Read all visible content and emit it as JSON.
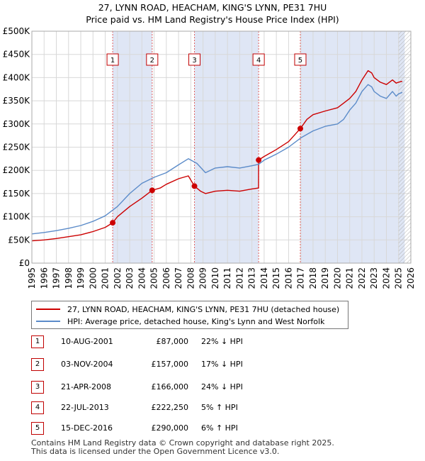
{
  "title": {
    "line1": "27, LYNN ROAD, HEACHAM, KING'S LYNN, PE31 7HU",
    "line2": "Price paid vs. HM Land Registry's House Price Index (HPI)"
  },
  "colors": {
    "property": "#cc0000",
    "hpi": "#5b8bc9",
    "shade": "#dfe6f5",
    "marker_line": "#e06060"
  },
  "chart_data": {
    "type": "line",
    "xlim": [
      1995,
      2026
    ],
    "ylim": [
      0,
      500000
    ],
    "x_ticks": [
      1995,
      1996,
      1997,
      1998,
      1999,
      2000,
      2001,
      2002,
      2003,
      2004,
      2005,
      2006,
      2007,
      2008,
      2009,
      2010,
      2011,
      2012,
      2013,
      2014,
      2015,
      2016,
      2017,
      2018,
      2019,
      2020,
      2021,
      2022,
      2023,
      2024,
      2025,
      2026
    ],
    "y_ticks": [
      {
        "value": 0,
        "label": "£0"
      },
      {
        "value": 50000,
        "label": "£50K"
      },
      {
        "value": 100000,
        "label": "£100K"
      },
      {
        "value": 150000,
        "label": "£150K"
      },
      {
        "value": 200000,
        "label": "£200K"
      },
      {
        "value": 250000,
        "label": "£250K"
      },
      {
        "value": 300000,
        "label": "£300K"
      },
      {
        "value": 350000,
        "label": "£350K"
      },
      {
        "value": 400000,
        "label": "£400K"
      },
      {
        "value": 450000,
        "label": "£450K"
      },
      {
        "value": 500000,
        "label": "£500K"
      }
    ],
    "shaded_periods": [
      [
        2001.61,
        2004.84
      ],
      [
        2008.3,
        2013.55
      ],
      [
        2016.96,
        2025.5
      ]
    ],
    "forecast_start": 2025.0,
    "series": [
      {
        "name": "27, LYNN ROAD, HEACHAM, KING'S LYNN, PE31 7HU (detached house)",
        "color_key": "property",
        "x": [
          1995.0,
          1996.0,
          1997.0,
          1998.0,
          1999.0,
          2000.0,
          2001.0,
          2001.61,
          2002.0,
          2003.0,
          2004.0,
          2004.84,
          2005.5,
          2006.0,
          2007.0,
          2007.8,
          2008.3,
          2008.8,
          2009.2,
          2010.0,
          2011.0,
          2012.0,
          2013.0,
          2013.54,
          2013.55,
          2014.0,
          2015.0,
          2016.0,
          2016.96,
          2017.5,
          2018.0,
          2019.0,
          2020.0,
          2020.5,
          2021.0,
          2021.5,
          2022.0,
          2022.5,
          2022.8,
          2023.0,
          2023.5,
          2024.0,
          2024.5,
          2024.8,
          2025.0,
          2025.3
        ],
        "y": [
          48000,
          50000,
          53000,
          57000,
          61000,
          68000,
          77000,
          87000,
          100000,
          122000,
          140000,
          157000,
          162000,
          170000,
          182000,
          188000,
          166000,
          155000,
          150000,
          155000,
          157000,
          155000,
          160000,
          162000,
          222250,
          230000,
          245000,
          262000,
          290000,
          310000,
          320000,
          328000,
          335000,
          345000,
          355000,
          370000,
          395000,
          415000,
          410000,
          400000,
          390000,
          385000,
          395000,
          388000,
          390000,
          392000
        ]
      },
      {
        "name": "HPI: Average price, detached house, King's Lynn and West Norfolk",
        "color_key": "hpi",
        "x": [
          1995.0,
          1996.0,
          1997.0,
          1998.0,
          1999.0,
          2000.0,
          2001.0,
          2002.0,
          2003.0,
          2004.0,
          2005.0,
          2006.0,
          2007.0,
          2007.8,
          2008.5,
          2009.2,
          2010.0,
          2011.0,
          2012.0,
          2013.0,
          2013.55,
          2014.0,
          2015.0,
          2016.0,
          2017.0,
          2018.0,
          2019.0,
          2020.0,
          2020.5,
          2021.0,
          2021.5,
          2022.0,
          2022.5,
          2022.8,
          2023.0,
          2023.5,
          2024.0,
          2024.5,
          2024.8,
          2025.0,
          2025.3
        ],
        "y": [
          63000,
          66000,
          70000,
          75000,
          81000,
          90000,
          102000,
          122000,
          150000,
          172000,
          185000,
          195000,
          212000,
          225000,
          215000,
          195000,
          205000,
          208000,
          205000,
          210000,
          213000,
          222000,
          235000,
          250000,
          270000,
          285000,
          295000,
          300000,
          310000,
          330000,
          345000,
          370000,
          385000,
          380000,
          370000,
          360000,
          355000,
          370000,
          360000,
          365000,
          368000
        ]
      }
    ],
    "sale_markers": [
      {
        "label": "1",
        "year": 2001.61,
        "price": 87000
      },
      {
        "label": "2",
        "year": 2004.84,
        "price": 157000
      },
      {
        "label": "3",
        "year": 2008.3,
        "price": 166000
      },
      {
        "label": "4",
        "year": 2013.55,
        "price": 222250
      },
      {
        "label": "5",
        "year": 2016.96,
        "price": 290000
      }
    ]
  },
  "legend": {
    "property_label": "27, LYNN ROAD, HEACHAM, KING'S LYNN, PE31 7HU (detached house)",
    "hpi_label": "HPI: Average price, detached house, King's Lynn and West Norfolk"
  },
  "sales": [
    {
      "num": "1",
      "date": "10-AUG-2001",
      "price": "£87,000",
      "hpi": "22% ↓ HPI"
    },
    {
      "num": "2",
      "date": "03-NOV-2004",
      "price": "£157,000",
      "hpi": "17% ↓ HPI"
    },
    {
      "num": "3",
      "date": "21-APR-2008",
      "price": "£166,000",
      "hpi": "24% ↓ HPI"
    },
    {
      "num": "4",
      "date": "22-JUL-2013",
      "price": "£222,250",
      "hpi": "5% ↑ HPI"
    },
    {
      "num": "5",
      "date": "15-DEC-2016",
      "price": "£290,000",
      "hpi": "6% ↑ HPI"
    }
  ],
  "footer": {
    "line1": "Contains HM Land Registry data © Crown copyright and database right 2025.",
    "line2": "This data is licensed under the Open Government Licence v3.0."
  }
}
